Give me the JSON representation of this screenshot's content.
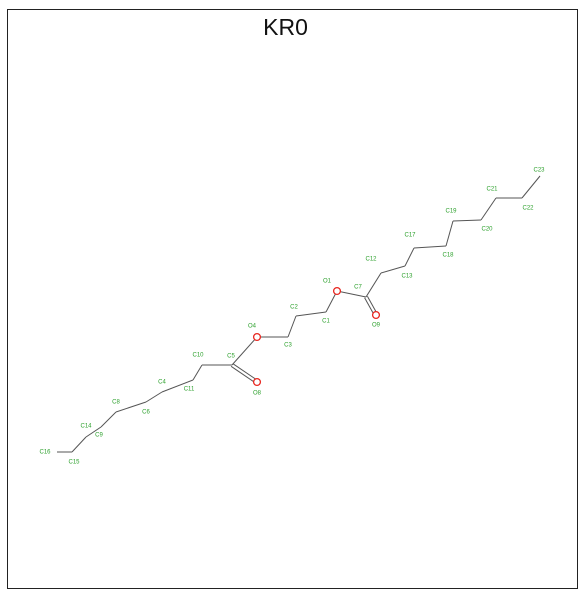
{
  "title": "KR0",
  "colors": {
    "carbon_label": "#2ca02c",
    "oxygen": "#e8261f",
    "bond": "#555555",
    "frame": "#222222"
  },
  "atoms": [
    {
      "id": "C16",
      "el": "C"
    },
    {
      "id": "C15",
      "el": "C"
    },
    {
      "id": "C14",
      "el": "C"
    },
    {
      "id": "C9",
      "el": "C"
    },
    {
      "id": "C8",
      "el": "C"
    },
    {
      "id": "C6",
      "el": "C"
    },
    {
      "id": "C4",
      "el": "C"
    },
    {
      "id": "C11",
      "el": "C"
    },
    {
      "id": "C10",
      "el": "C"
    },
    {
      "id": "C5",
      "el": "C"
    },
    {
      "id": "O8",
      "el": "O"
    },
    {
      "id": "O4",
      "el": "O"
    },
    {
      "id": "C3",
      "el": "C"
    },
    {
      "id": "C2",
      "el": "C"
    },
    {
      "id": "C1",
      "el": "C"
    },
    {
      "id": "O1",
      "el": "O"
    },
    {
      "id": "C7",
      "el": "C"
    },
    {
      "id": "O9",
      "el": "O"
    },
    {
      "id": "C12",
      "el": "C"
    },
    {
      "id": "C13",
      "el": "C"
    },
    {
      "id": "C17",
      "el": "C"
    },
    {
      "id": "C18",
      "el": "C"
    },
    {
      "id": "C19",
      "el": "C"
    },
    {
      "id": "C20",
      "el": "C"
    },
    {
      "id": "C21",
      "el": "C"
    },
    {
      "id": "C22",
      "el": "C"
    },
    {
      "id": "C23",
      "el": "C"
    }
  ],
  "bonds": [
    [
      "C16",
      "C15",
      1
    ],
    [
      "C15",
      "C14",
      1
    ],
    [
      "C14",
      "C9",
      1
    ],
    [
      "C9",
      "C8",
      1
    ],
    [
      "C8",
      "C6",
      1
    ],
    [
      "C6",
      "C4",
      1
    ],
    [
      "C4",
      "C11",
      1
    ],
    [
      "C11",
      "C10",
      1
    ],
    [
      "C10",
      "C5",
      1
    ],
    [
      "C5",
      "O8",
      2
    ],
    [
      "C5",
      "O4",
      1
    ],
    [
      "O4",
      "C3",
      1
    ],
    [
      "C3",
      "C2",
      1
    ],
    [
      "C2",
      "C1",
      1
    ],
    [
      "C1",
      "O1",
      1
    ],
    [
      "O1",
      "C7",
      1
    ],
    [
      "C7",
      "O9",
      2
    ],
    [
      "C7",
      "C12",
      1
    ],
    [
      "C12",
      "C13",
      1
    ],
    [
      "C13",
      "C17",
      1
    ],
    [
      "C17",
      "C18",
      1
    ],
    [
      "C18",
      "C19",
      1
    ],
    [
      "C19",
      "C20",
      1
    ],
    [
      "C20",
      "C21",
      1
    ],
    [
      "C21",
      "C22",
      1
    ],
    [
      "C22",
      "C23",
      1
    ]
  ]
}
